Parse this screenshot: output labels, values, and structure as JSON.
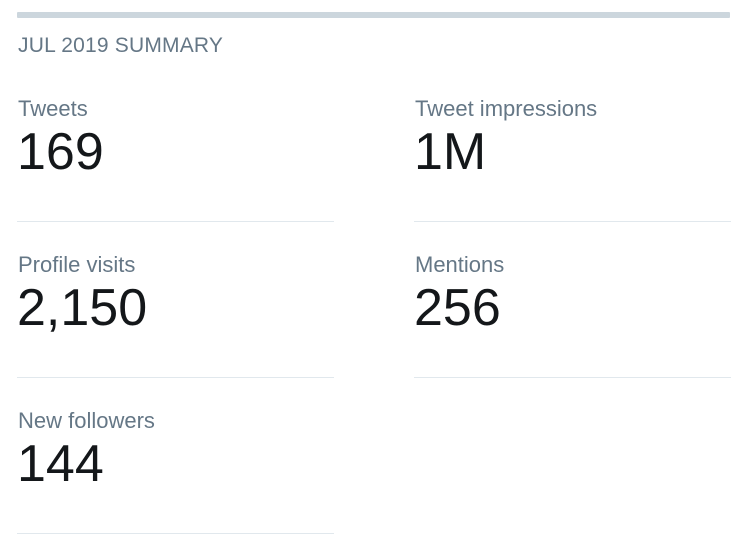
{
  "summary": {
    "heading": "JUL 2019 SUMMARY"
  },
  "metrics": [
    {
      "label": "Tweets",
      "value": "169"
    },
    {
      "label": "Tweet impressions",
      "value": "1M"
    },
    {
      "label": "Profile visits",
      "value": "2,150"
    },
    {
      "label": "Mentions",
      "value": "256"
    },
    {
      "label": "New followers",
      "value": "144"
    }
  ],
  "colors": {
    "divider": "#ccd6dd",
    "label": "#657786",
    "value": "#14171a",
    "row_rule": "#e1e8ed"
  }
}
